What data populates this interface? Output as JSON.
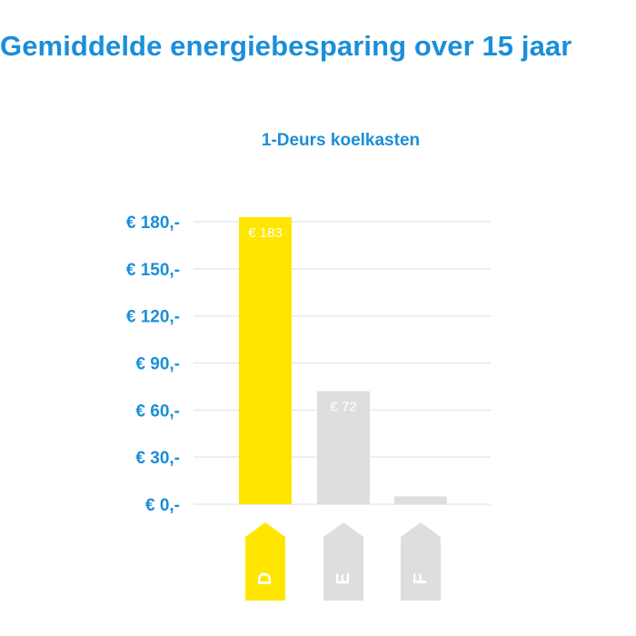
{
  "title": "Gemiddelde energiebesparing over 15 jaar",
  "colors": {
    "accent": "#1a8fd8",
    "highlight": "#ffe600",
    "muted": "#dedede",
    "grid": "#e4eaf0"
  },
  "chart_data": {
    "type": "bar",
    "title": "1-Deurs koelkasten",
    "xlabel": "",
    "ylabel": "",
    "ylim": [
      0,
      180
    ],
    "yticks": [
      {
        "value": 0,
        "label": "€ 0,-"
      },
      {
        "value": 30,
        "label": "€ 30,-"
      },
      {
        "value": 60,
        "label": "€ 60,-"
      },
      {
        "value": 90,
        "label": "€ 90,-"
      },
      {
        "value": 120,
        "label": "€ 120,-"
      },
      {
        "value": 150,
        "label": "€ 150,-"
      },
      {
        "value": 180,
        "label": "€ 180,-"
      }
    ],
    "categories": [
      "D",
      "E",
      "F"
    ],
    "values": [
      183,
      72,
      5
    ],
    "value_labels": [
      "€ 183",
      "€ 72",
      ""
    ],
    "bar_colors": [
      "#ffe600",
      "#dedede",
      "#dedede"
    ],
    "grid": true,
    "legend": "none"
  }
}
